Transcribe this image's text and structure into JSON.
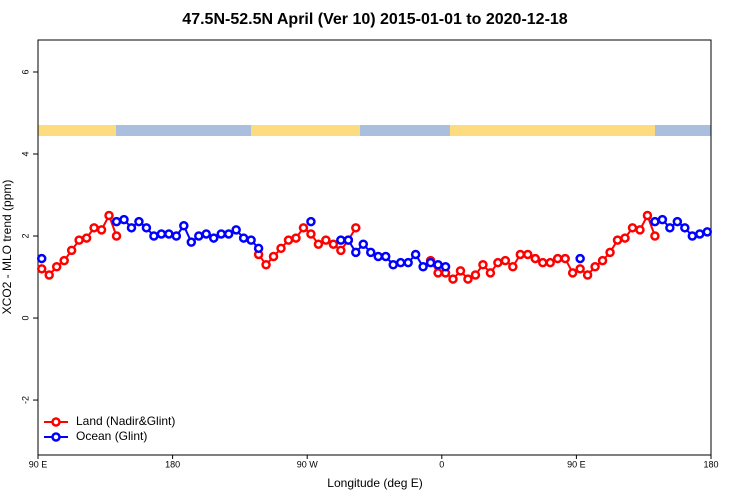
{
  "chart_data": {
    "type": "line",
    "title": "47.5N-52.5N April (Ver 10)   2015-01-01 to 2020-12-18",
    "xlabel": "Longitude (deg E)",
    "ylabel": "XCO2 - MLO trend (ppm)",
    "x": [
      92.5,
      97.5,
      102.5,
      107.5,
      112.5,
      117.5,
      122.5,
      127.5,
      132.5,
      137.5,
      142.5,
      147.5,
      152.5,
      157.5,
      162.5,
      167.5,
      172.5,
      177.5,
      182.5,
      187.5,
      192.5,
      197.5,
      202.5,
      207.5,
      212.5,
      217.5,
      222.5,
      227.5,
      232.5,
      237.5,
      242.5,
      247.5,
      252.5,
      257.5,
      262.5,
      267.5,
      272.5,
      277.5,
      282.5,
      287.5,
      292.5,
      297.5,
      302.5,
      307.5,
      312.5,
      317.5,
      322.5,
      327.5,
      332.5,
      337.5,
      342.5,
      347.5,
      352.5,
      357.5,
      362.5,
      367.5,
      372.5,
      377.5,
      382.5,
      387.5,
      392.5,
      397.5,
      402.5,
      407.5,
      412.5,
      417.5,
      422.5,
      427.5,
      432.5,
      437.5,
      442.5,
      447.5,
      452.5,
      457.5,
      462.5,
      467.5,
      472.5,
      477.5,
      482.5,
      487.5,
      492.5,
      497.5,
      502.5,
      507.5,
      512.5,
      517.5,
      522.5,
      527.5,
      532.5,
      537.5
    ],
    "series": [
      {
        "name": "Land (Nadir&Glint)",
        "color": "#ff0000",
        "values": [
          1.2,
          1.05,
          1.25,
          1.4,
          1.65,
          1.9,
          1.95,
          2.2,
          2.15,
          2.5,
          2.0,
          null,
          null,
          null,
          null,
          null,
          null,
          null,
          null,
          null,
          null,
          null,
          null,
          null,
          null,
          null,
          null,
          null,
          null,
          1.55,
          1.3,
          1.5,
          1.7,
          1.9,
          1.95,
          2.2,
          2.05,
          1.8,
          1.9,
          1.8,
          1.65,
          1.9,
          2.2,
          null,
          null,
          null,
          null,
          null,
          null,
          null,
          null,
          null,
          1.4,
          1.1,
          1.1,
          0.95,
          1.15,
          0.95,
          1.05,
          1.3,
          1.1,
          1.35,
          1.4,
          1.25,
          1.55,
          1.55,
          1.45,
          1.35,
          1.35,
          1.45,
          1.45,
          1.1,
          1.2,
          1.05,
          1.25,
          1.4,
          1.6,
          1.9,
          1.95,
          2.2,
          2.15,
          2.5,
          2.0,
          null,
          null,
          null,
          null,
          null,
          null,
          null
        ]
      },
      {
        "name": "Ocean (Glint)",
        "color": "#0000ff",
        "values": [
          1.45,
          null,
          null,
          null,
          null,
          null,
          null,
          null,
          null,
          null,
          2.35,
          2.4,
          2.2,
          2.35,
          2.2,
          2.0,
          2.05,
          2.05,
          2.0,
          2.25,
          1.85,
          2.0,
          2.05,
          1.95,
          2.05,
          2.05,
          2.15,
          1.95,
          1.9,
          1.7,
          null,
          null,
          null,
          null,
          null,
          null,
          2.35,
          null,
          null,
          null,
          1.9,
          1.9,
          1.6,
          1.8,
          1.6,
          1.5,
          1.5,
          1.3,
          1.35,
          1.35,
          1.55,
          1.25,
          1.35,
          1.3,
          1.25,
          null,
          null,
          null,
          null,
          null,
          null,
          null,
          null,
          null,
          null,
          null,
          null,
          null,
          null,
          null,
          null,
          null,
          1.45,
          null,
          null,
          null,
          null,
          null,
          null,
          null,
          null,
          null,
          2.35,
          2.4,
          2.2,
          2.35,
          2.2,
          2.0,
          2.05,
          2.1
        ]
      }
    ],
    "xlim": [
      90,
      540
    ],
    "xticks": [
      {
        "value": 90,
        "label": "90 E"
      },
      {
        "value": 180,
        "label": "180"
      },
      {
        "value": 270,
        "label": "90 W"
      },
      {
        "value": 360,
        "label": "0"
      },
      {
        "value": 450,
        "label": "90 E"
      },
      {
        "value": 540,
        "label": "180"
      }
    ],
    "ylim": [
      -3.34,
      6.78
    ],
    "yticks": [
      -2,
      0,
      2,
      4,
      6
    ],
    "legend": "bottom-left"
  }
}
